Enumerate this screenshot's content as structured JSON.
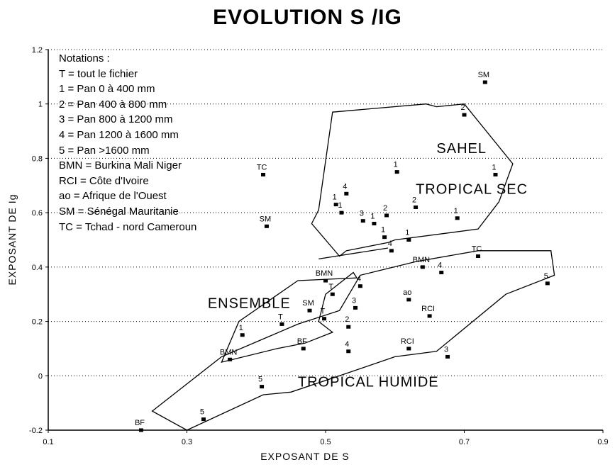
{
  "chart_data": {
    "type": "scatter",
    "title": "EVOLUTION S /IG",
    "xlabel": "EXPOSANT DE S",
    "ylabel": "EXPOSANT DE Ig",
    "xlim": [
      0.1,
      0.9
    ],
    "ylim": [
      -0.2,
      1.2
    ],
    "xticks": [
      "0.1",
      "0.3",
      "0.5",
      "0.7",
      "0.9"
    ],
    "yticks": [
      "-0.2",
      "0",
      "0.2",
      "0.4",
      "0.6",
      "0.8",
      "1",
      "1.2"
    ],
    "grid": "horizontal dotted",
    "legend_title": "Notations :",
    "legend_entries": [
      "T = tout le fichier",
      "1 = Pan 0 à 400 mm",
      "2 = Pan 400 à 800 mm",
      "3 = Pan 800 à 1200 mm",
      "4 = Pan 1200 à 1600 mm",
      "5 = Pan >1600 mm",
      "BMN = Burkina Mali Niger",
      "RCI = Côte d'Ivoire",
      "ao = Afrique de l'Ouest",
      "SM = Sénégal Mauritanie",
      "TC = Tchad - nord Cameroun"
    ],
    "points": [
      {
        "label": "SM",
        "x": 0.73,
        "y": 1.08
      },
      {
        "label": "2",
        "x": 0.7,
        "y": 0.96
      },
      {
        "label": "1",
        "x": 0.603,
        "y": 0.75
      },
      {
        "label": "1",
        "x": 0.745,
        "y": 0.74
      },
      {
        "label": "TC",
        "x": 0.41,
        "y": 0.74
      },
      {
        "label": "4",
        "x": 0.53,
        "y": 0.67
      },
      {
        "label": "1",
        "x": 0.515,
        "y": 0.63
      },
      {
        "label": "1",
        "x": 0.523,
        "y": 0.6
      },
      {
        "label": "2",
        "x": 0.63,
        "y": 0.62
      },
      {
        "label": "2",
        "x": 0.588,
        "y": 0.59
      },
      {
        "label": "3",
        "x": 0.554,
        "y": 0.57
      },
      {
        "label": "1",
        "x": 0.57,
        "y": 0.56
      },
      {
        "label": "1",
        "x": 0.69,
        "y": 0.58
      },
      {
        "label": "SM",
        "x": 0.415,
        "y": 0.55
      },
      {
        "label": "1",
        "x": 0.585,
        "y": 0.51
      },
      {
        "label": "1",
        "x": 0.62,
        "y": 0.5
      },
      {
        "label": "4",
        "x": 0.595,
        "y": 0.46
      },
      {
        "label": "BMN",
        "x": 0.64,
        "y": 0.4
      },
      {
        "label": "4",
        "x": 0.667,
        "y": 0.38
      },
      {
        "label": "TC",
        "x": 0.72,
        "y": 0.44
      },
      {
        "label": "5",
        "x": 0.82,
        "y": 0.34
      },
      {
        "label": "BMN",
        "x": 0.5,
        "y": 0.35
      },
      {
        "label": "T",
        "x": 0.51,
        "y": 0.3
      },
      {
        "label": "4",
        "x": 0.55,
        "y": 0.33
      },
      {
        "label": "ao",
        "x": 0.62,
        "y": 0.28
      },
      {
        "label": "3",
        "x": 0.543,
        "y": 0.25
      },
      {
        "label": "SM",
        "x": 0.477,
        "y": 0.24
      },
      {
        "label": "T",
        "x": 0.498,
        "y": 0.21
      },
      {
        "label": "RCI",
        "x": 0.65,
        "y": 0.22
      },
      {
        "label": "T",
        "x": 0.437,
        "y": 0.19
      },
      {
        "label": "2",
        "x": 0.533,
        "y": 0.18
      },
      {
        "label": "1",
        "x": 0.38,
        "y": 0.15
      },
      {
        "label": "BF",
        "x": 0.468,
        "y": 0.1
      },
      {
        "label": "4",
        "x": 0.533,
        "y": 0.09
      },
      {
        "label": "RCI",
        "x": 0.62,
        "y": 0.1
      },
      {
        "label": "3",
        "x": 0.676,
        "y": 0.07
      },
      {
        "label": "BMN",
        "x": 0.362,
        "y": 0.06
      },
      {
        "label": "5",
        "x": 0.408,
        "y": -0.04
      },
      {
        "label": "5",
        "x": 0.324,
        "y": -0.16
      },
      {
        "label": "BF",
        "x": 0.234,
        "y": -0.2
      }
    ],
    "regions": [
      {
        "label": "SAHEL",
        "x": 0.66,
        "y": 0.82
      },
      {
        "label": "TROPICAL SEC",
        "x": 0.63,
        "y": 0.67
      },
      {
        "label": "ENSEMBLE",
        "x": 0.33,
        "y": 0.25
      },
      {
        "label": "TROPICAL HUMIDE",
        "x": 0.46,
        "y": -0.04
      }
    ],
    "envelopes": [
      {
        "name": "sahel-tropical-sec",
        "points": [
          [
            0.51,
            0.97
          ],
          [
            0.645,
            1.0
          ],
          [
            0.66,
            0.99
          ],
          [
            0.7,
            1.0
          ],
          [
            0.77,
            0.78
          ],
          [
            0.75,
            0.64
          ],
          [
            0.72,
            0.54
          ],
          [
            0.6,
            0.5
          ],
          [
            0.59,
            0.49
          ],
          [
            0.53,
            0.46
          ],
          [
            0.52,
            0.44
          ],
          [
            0.48,
            0.56
          ],
          [
            0.49,
            0.61
          ]
        ]
      },
      {
        "name": "ensemble",
        "points": [
          [
            0.35,
            0.05
          ],
          [
            0.375,
            0.2
          ],
          [
            0.46,
            0.35
          ],
          [
            0.545,
            0.36
          ],
          [
            0.54,
            0.38
          ],
          [
            0.5,
            0.3
          ],
          [
            0.49,
            0.2
          ],
          [
            0.51,
            0.16
          ],
          [
            0.47,
            0.12
          ],
          [
            0.43,
            0.1
          ]
        ]
      },
      {
        "name": "tropical-humide",
        "points": [
          [
            0.25,
            -0.13
          ],
          [
            0.35,
            0.07
          ],
          [
            0.46,
            0.19
          ],
          [
            0.52,
            0.24
          ],
          [
            0.55,
            0.37
          ],
          [
            0.63,
            0.42
          ],
          [
            0.72,
            0.46
          ],
          [
            0.825,
            0.46
          ],
          [
            0.83,
            0.37
          ],
          [
            0.76,
            0.3
          ],
          [
            0.66,
            0.09
          ],
          [
            0.6,
            0.07
          ],
          [
            0.52,
            0.0
          ],
          [
            0.45,
            -0.06
          ],
          [
            0.41,
            -0.07
          ],
          [
            0.3,
            -0.2
          ]
        ]
      }
    ]
  }
}
